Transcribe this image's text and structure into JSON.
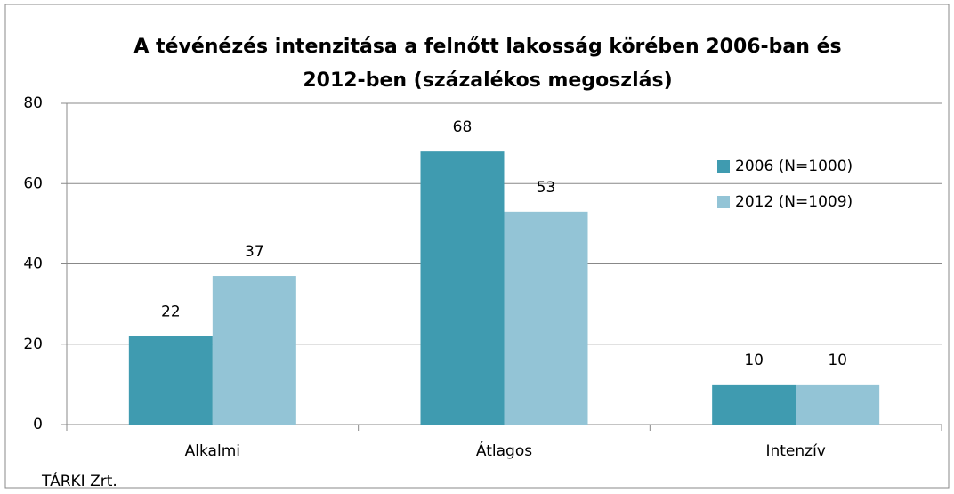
{
  "chart_data": {
    "type": "bar",
    "title": "A tévénézés intenzitása a felnőtt lakosság körében 2006-ban és 2012-ben (százalékos megoszlás)",
    "categories": [
      "Alkalmi",
      "Átlagos",
      "Intenzív"
    ],
    "series": [
      {
        "name": "2006 (N=1000)",
        "color": "#3f9bb0",
        "values": [
          22,
          68,
          10
        ]
      },
      {
        "name": "2012 (N=1009)",
        "color": "#93c4d6",
        "values": [
          37,
          53,
          10
        ]
      }
    ],
    "ylim": [
      0,
      80
    ],
    "yticks": [
      0,
      20,
      40,
      60,
      80
    ],
    "grid": true,
    "legend": "right",
    "source": "TÁRKI Zrt."
  }
}
